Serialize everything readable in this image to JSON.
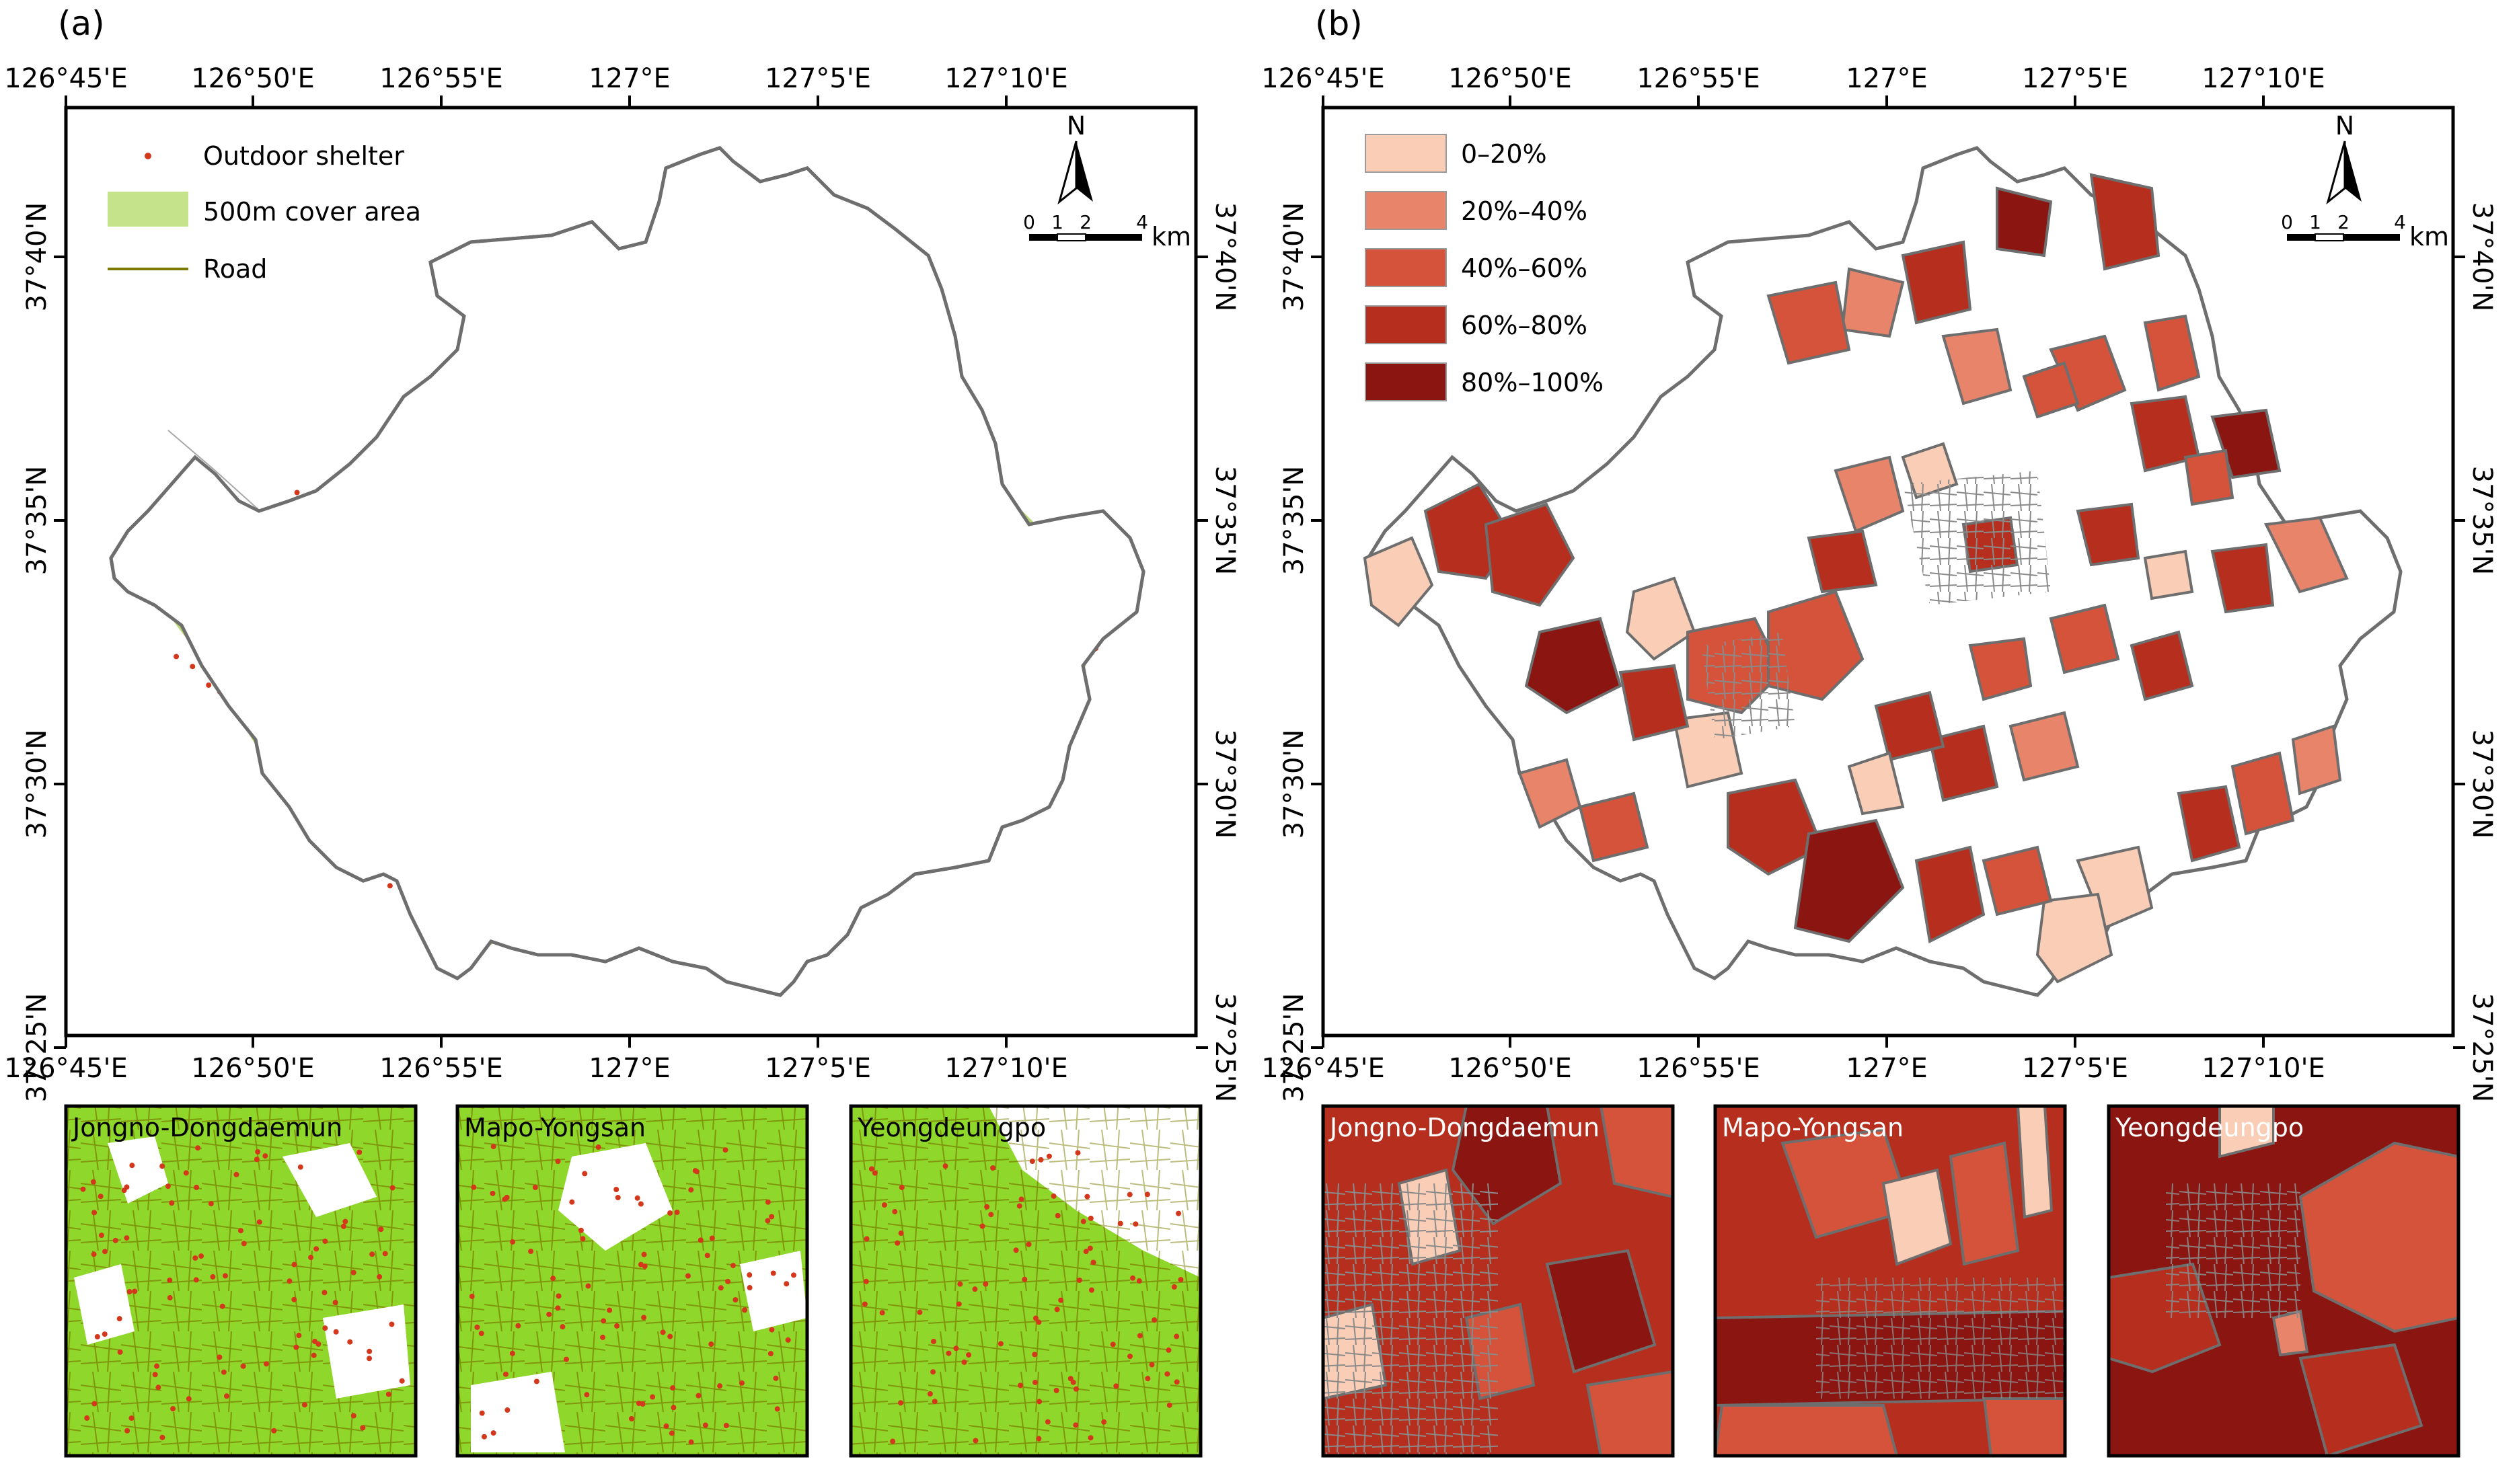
{
  "panels": [
    {
      "label": "(a)",
      "legend": [
        {
          "symbol": "point",
          "color": "#d4381c",
          "label": "Outdoor shelter"
        },
        {
          "symbol": "area",
          "color": "#c5e38a",
          "label": "500m cover area"
        },
        {
          "symbol": "line",
          "color": "#7a7a00",
          "label": "Road"
        }
      ],
      "top_ticks": [
        "126°45'E",
        "126°50'E",
        "126°55'E",
        "127°E",
        "127°5'E",
        "127°10'E"
      ],
      "bottom_ticks": [
        "126°45'E",
        "126°50'E",
        "126°55'E",
        "127°E",
        "127°5'E",
        "127°10'E"
      ],
      "left_ticks": [
        "37°40'N",
        "37°35'N",
        "37°30'N",
        "37°25'N"
      ],
      "right_ticks": [
        "37°40'N",
        "37°35'N",
        "37°30'N",
        "37°25'N"
      ],
      "insets": [
        "Jongno-Dongdaemun",
        "Mapo-Yongsan",
        "Yeongdeungpo"
      ]
    },
    {
      "label": "(b)",
      "legend": [
        {
          "color": "#f9cdb6",
          "label": "0–20%"
        },
        {
          "color": "#e8846a",
          "label": "20%–40%"
        },
        {
          "color": "#d4533a",
          "label": "40%–60%"
        },
        {
          "color": "#b52e1e",
          "label": "60%–80%"
        },
        {
          "color": "#8b1510",
          "label": "80%–100%"
        }
      ],
      "top_ticks": [
        "126°45'E",
        "126°50'E",
        "126°55'E",
        "127°E",
        "127°5'E",
        "127°10'E"
      ],
      "bottom_ticks": [
        "126°45'E",
        "126°50'E",
        "126°55'E",
        "127°E",
        "127°5'E",
        "127°10'E"
      ],
      "left_ticks": [
        "37°40'N",
        "37°35'N",
        "37°30'N",
        "37°25'N"
      ],
      "right_ticks": [
        "37°40'N",
        "37°35'N",
        "37°30'N",
        "37°25'N"
      ],
      "insets": [
        "Jongno-Dongdaemun",
        "Mapo-Yongsan",
        "Yeongdeungpo"
      ]
    }
  ],
  "north_arrow": "N",
  "scale_bar": {
    "labels": [
      "0",
      "1",
      "2",
      "4"
    ],
    "unit": "km"
  },
  "colors": {
    "boundary": "#6e6e6e",
    "cover": "#c5e38a",
    "cover_dark": "#9cc63d",
    "road": "#7a7a00",
    "shelter": "#d4381c",
    "inset_bright": "#8fd72a"
  }
}
